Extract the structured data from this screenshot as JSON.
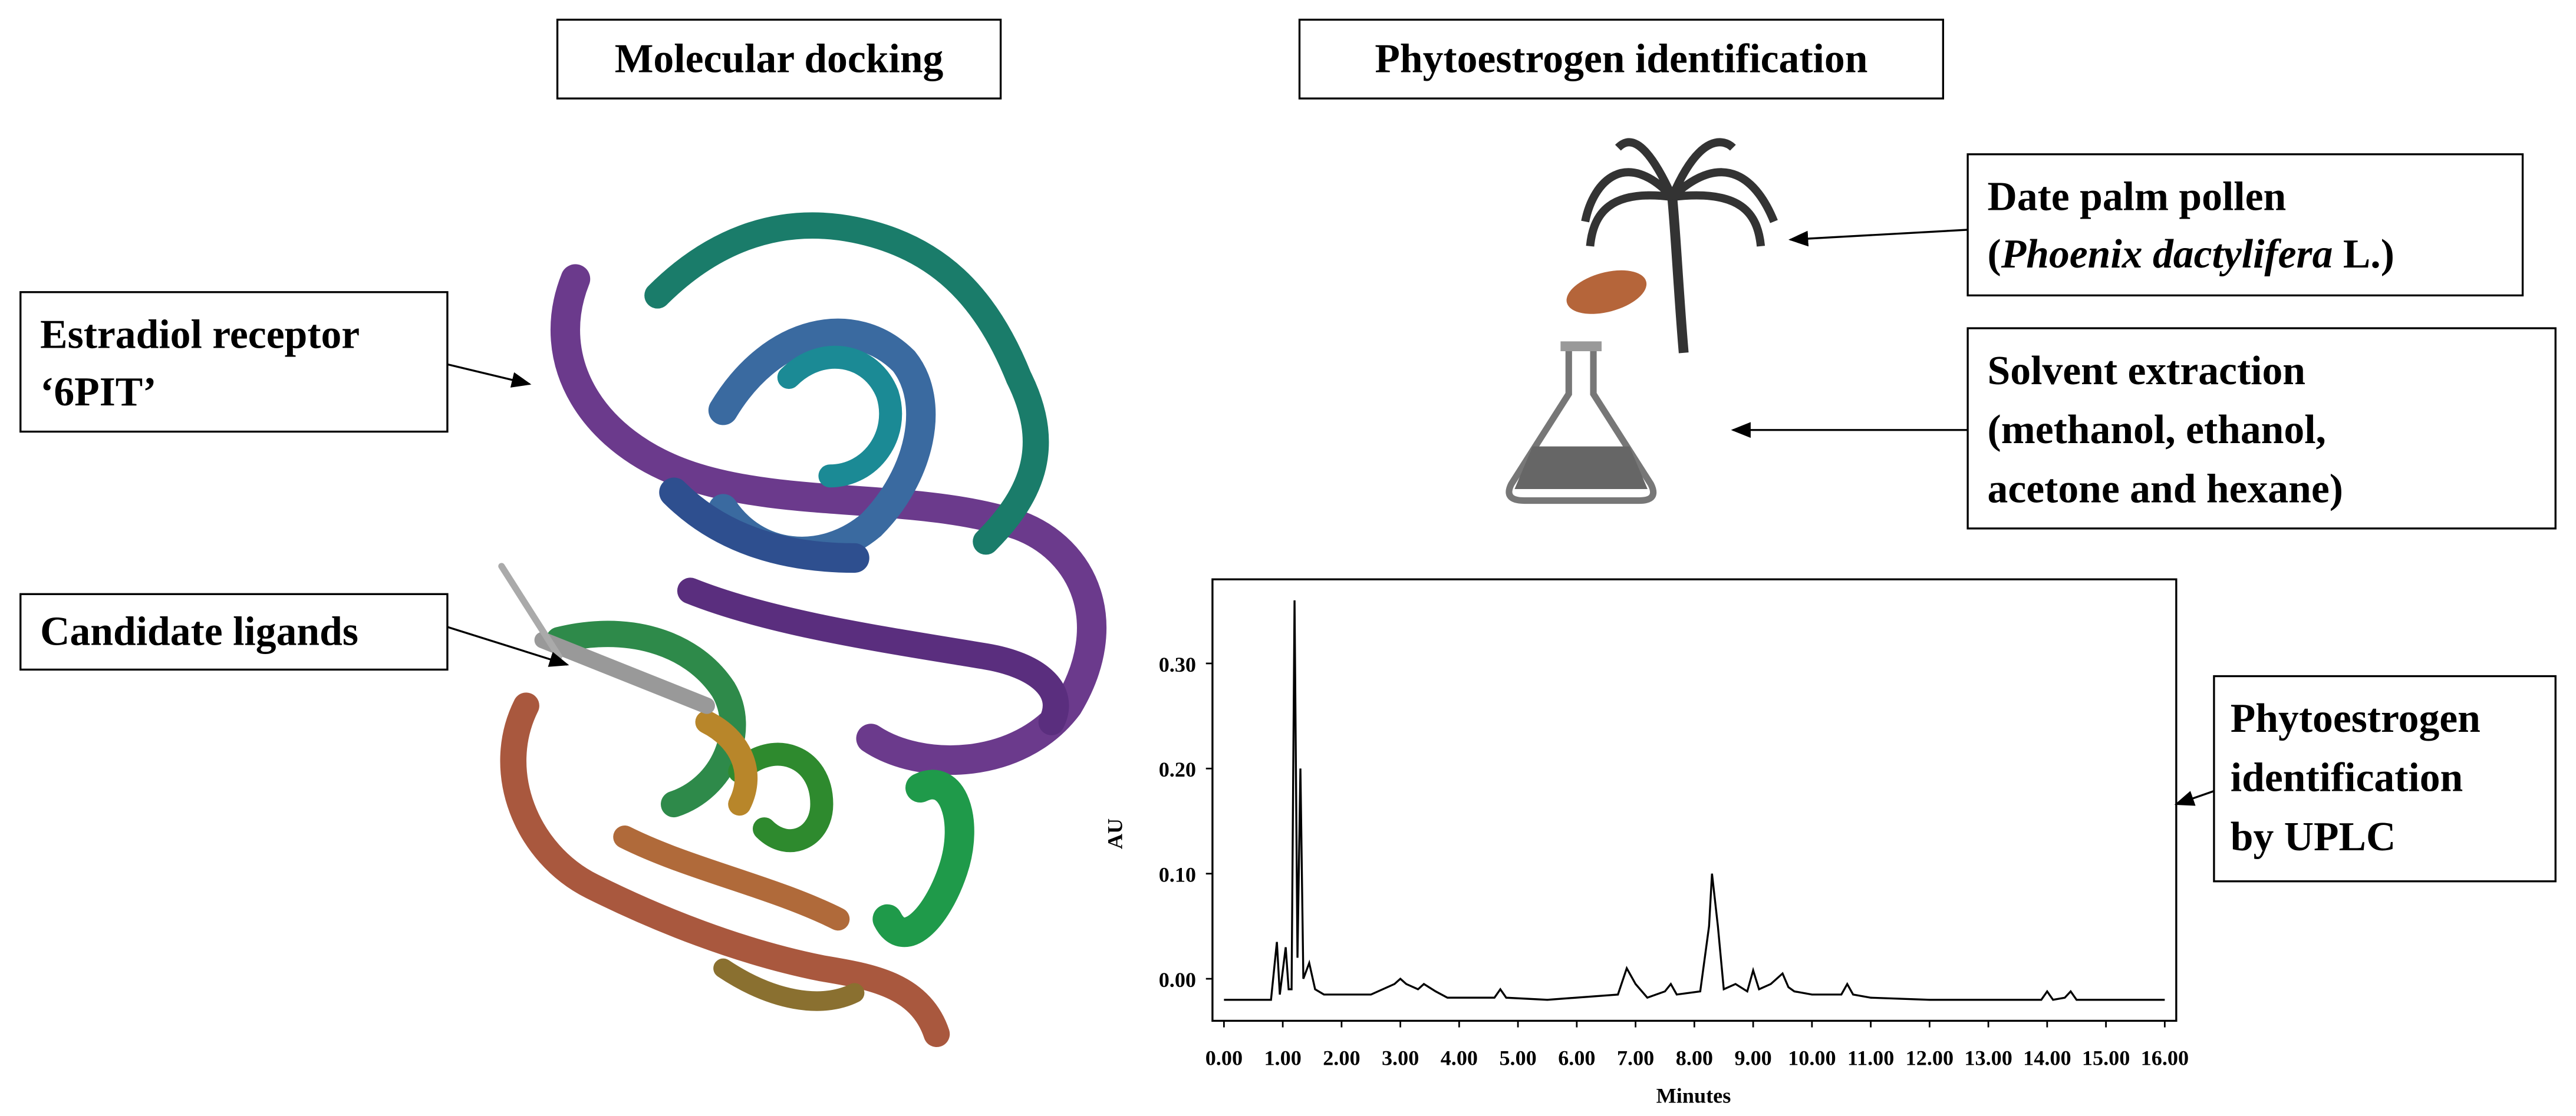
{
  "sections": {
    "left": "Molecular docking",
    "right": "Phytoestrogen identification"
  },
  "labels": {
    "receptor": [
      "Estradiol receptor",
      "‘6PIT’"
    ],
    "ligands": "Candidate ligands",
    "pollen": {
      "line1": "Date palm pollen",
      "open": "(",
      "species": "Phoenix dactylifera",
      "close": " L.)"
    },
    "solvent": [
      "Solvent extraction",
      "(methanol, ethanol,",
      "acetone and hexane)"
    ],
    "uplc": [
      "Phytoestrogen",
      "identification",
      "by UPLC"
    ]
  },
  "chart_data": {
    "type": "line",
    "xlabel": "Minutes",
    "ylabel": "AU",
    "xlim": [
      0,
      16
    ],
    "ylim": [
      -0.04,
      0.38
    ],
    "xticks": [
      {
        "value": 0,
        "label": "0.00"
      },
      {
        "value": 1,
        "label": "1.00"
      },
      {
        "value": 2,
        "label": "2.00"
      },
      {
        "value": 3,
        "label": "3.00"
      },
      {
        "value": 4,
        "label": "4.00"
      },
      {
        "value": 5,
        "label": "5.00"
      },
      {
        "value": 6,
        "label": "6.00"
      },
      {
        "value": 7,
        "label": "7.00"
      },
      {
        "value": 8,
        "label": "8.00"
      },
      {
        "value": 9,
        "label": "9.00"
      },
      {
        "value": 10,
        "label": "10.00"
      },
      {
        "value": 11,
        "label": "11.00"
      },
      {
        "value": 12,
        "label": "12.00"
      },
      {
        "value": 13,
        "label": "13.00"
      },
      {
        "value": 14,
        "label": "14.00"
      },
      {
        "value": 15,
        "label": "15.00"
      },
      {
        "value": 16,
        "label": "16.00"
      }
    ],
    "yticks": [
      {
        "value": 0,
        "label": "0.00"
      },
      {
        "value": 0.1,
        "label": "0.10"
      },
      {
        "value": 0.2,
        "label": "0.20"
      },
      {
        "value": 0.3,
        "label": "0.30"
      }
    ],
    "x": [
      0,
      0.8,
      0.9,
      0.95,
      1.05,
      1.1,
      1.15,
      1.2,
      1.25,
      1.3,
      1.35,
      1.45,
      1.55,
      1.7,
      2.5,
      2.9,
      3.0,
      3.1,
      3.3,
      3.4,
      3.6,
      3.8,
      4.6,
      4.7,
      4.8,
      5.5,
      6.7,
      6.85,
      7.0,
      7.2,
      7.5,
      7.6,
      7.7,
      8.1,
      8.25,
      8.3,
      8.4,
      8.5,
      8.7,
      8.9,
      9.0,
      9.1,
      9.3,
      9.5,
      9.6,
      9.7,
      10.0,
      10.5,
      10.6,
      10.7,
      11.0,
      12.0,
      13.9,
      14.0,
      14.1,
      14.3,
      14.4,
      14.5,
      15.0,
      16.0
    ],
    "values": [
      -0.02,
      -0.02,
      0.035,
      -0.015,
      0.03,
      -0.01,
      -0.01,
      0.36,
      0.02,
      0.2,
      0.0,
      0.015,
      -0.01,
      -0.015,
      -0.015,
      -0.005,
      0.0,
      -0.005,
      -0.01,
      -0.005,
      -0.012,
      -0.018,
      -0.018,
      -0.01,
      -0.018,
      -0.02,
      -0.015,
      0.01,
      -0.005,
      -0.018,
      -0.012,
      -0.005,
      -0.015,
      -0.012,
      0.05,
      0.1,
      0.05,
      -0.01,
      -0.005,
      -0.012,
      0.008,
      -0.01,
      -0.005,
      0.005,
      -0.008,
      -0.012,
      -0.015,
      -0.015,
      -0.005,
      -0.015,
      -0.018,
      -0.02,
      -0.02,
      -0.012,
      -0.02,
      -0.018,
      -0.012,
      -0.02,
      -0.02,
      -0.02
    ],
    "color": "#000000"
  }
}
